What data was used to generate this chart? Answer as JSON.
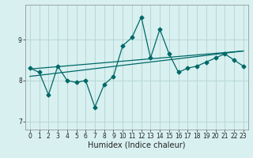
{
  "title": "",
  "xlabel": "Humidex (Indice chaleur)",
  "background_color": "#d8f0f0",
  "grid_color": "#b8d8d4",
  "line_color": "#006868",
  "xlim": [
    -0.5,
    23.5
  ],
  "ylim": [
    6.8,
    9.85
  ],
  "yticks": [
    7,
    8,
    9
  ],
  "xticks": [
    0,
    1,
    2,
    3,
    4,
    5,
    6,
    7,
    8,
    9,
    10,
    11,
    12,
    13,
    14,
    15,
    16,
    17,
    18,
    19,
    20,
    21,
    22,
    23
  ],
  "x_data": [
    0,
    1,
    2,
    3,
    4,
    5,
    6,
    7,
    8,
    9,
    10,
    11,
    12,
    13,
    14,
    15,
    16,
    17,
    18,
    19,
    20,
    21,
    22,
    23
  ],
  "y_main": [
    8.3,
    8.2,
    7.65,
    8.35,
    8.0,
    7.95,
    8.0,
    7.35,
    7.9,
    8.1,
    8.85,
    9.05,
    9.55,
    8.55,
    9.25,
    8.65,
    8.2,
    8.3,
    8.35,
    8.45,
    8.55,
    8.65,
    8.5,
    8.35
  ],
  "y_trend1_start": 8.28,
  "y_trend1_end": 8.72,
  "y_trend2_start": 8.1,
  "y_trend2_end": 8.72,
  "marker_size": 2.5,
  "line_width": 0.9,
  "tick_fontsize": 5.5,
  "xlabel_fontsize": 7
}
